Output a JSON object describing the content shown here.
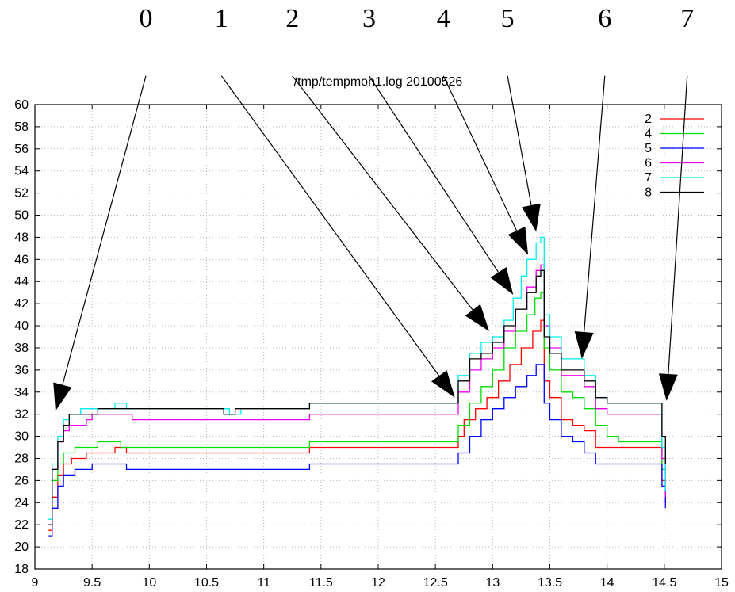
{
  "chart_data": {
    "type": "line",
    "title": "/tmp/tempmon1.log 20100526",
    "xlabel": "",
    "ylabel": "",
    "xlim": [
      9,
      15
    ],
    "ylim": [
      18,
      60
    ],
    "xticks": [
      "9",
      "9.5",
      "10",
      "10.5",
      "11",
      "11.5",
      "12",
      "12.5",
      "13",
      "13.5",
      "14",
      "14.5",
      "15"
    ],
    "yticks": [
      "18",
      "20",
      "22",
      "24",
      "26",
      "28",
      "30",
      "32",
      "34",
      "36",
      "38",
      "40",
      "42",
      "44",
      "46",
      "48",
      "50",
      "52",
      "54",
      "56",
      "58",
      "60"
    ],
    "grid": true,
    "legend": "top-right",
    "series": [
      {
        "name": "2",
        "color": "#ff0000",
        "points": [
          [
            9.12,
            21.5
          ],
          [
            9.15,
            24.5
          ],
          [
            9.2,
            26.5
          ],
          [
            9.25,
            27.5
          ],
          [
            9.32,
            28
          ],
          [
            9.45,
            28.5
          ],
          [
            9.7,
            29
          ],
          [
            9.8,
            28.5
          ],
          [
            11.35,
            28.5
          ],
          [
            11.4,
            29
          ],
          [
            12.65,
            29
          ],
          [
            12.7,
            30
          ],
          [
            12.75,
            31.5
          ],
          [
            12.85,
            32.5
          ],
          [
            12.95,
            33.5
          ],
          [
            13.05,
            35
          ],
          [
            13.15,
            36.5
          ],
          [
            13.25,
            38
          ],
          [
            13.35,
            39.5
          ],
          [
            13.42,
            40.5
          ],
          [
            13.45,
            35
          ],
          [
            13.5,
            33.5
          ],
          [
            13.6,
            31.5
          ],
          [
            13.7,
            31
          ],
          [
            13.8,
            30.5
          ],
          [
            13.9,
            29
          ],
          [
            14.0,
            29
          ],
          [
            14.45,
            29
          ],
          [
            14.48,
            26
          ],
          [
            14.51,
            24
          ]
        ]
      },
      {
        "name": "4",
        "color": "#00dd00",
        "points": [
          [
            9.12,
            22.5
          ],
          [
            9.15,
            26
          ],
          [
            9.2,
            27.5
          ],
          [
            9.25,
            28.5
          ],
          [
            9.35,
            29
          ],
          [
            9.55,
            29.5
          ],
          [
            9.7,
            29.5
          ],
          [
            9.75,
            29
          ],
          [
            11.35,
            29
          ],
          [
            11.4,
            29.5
          ],
          [
            12.65,
            29.5
          ],
          [
            12.7,
            31
          ],
          [
            12.8,
            33
          ],
          [
            12.9,
            34.5
          ],
          [
            13.0,
            36
          ],
          [
            13.1,
            38
          ],
          [
            13.2,
            39.5
          ],
          [
            13.3,
            41
          ],
          [
            13.37,
            42.5
          ],
          [
            13.42,
            43
          ],
          [
            13.45,
            38
          ],
          [
            13.5,
            36
          ],
          [
            13.6,
            34
          ],
          [
            13.7,
            33.5
          ],
          [
            13.8,
            32.5
          ],
          [
            13.9,
            31
          ],
          [
            14.0,
            30
          ],
          [
            14.1,
            29.5
          ],
          [
            14.45,
            29.5
          ],
          [
            14.48,
            27
          ],
          [
            14.51,
            25
          ]
        ]
      },
      {
        "name": "5",
        "color": "#0000ff",
        "points": [
          [
            9.12,
            21
          ],
          [
            9.15,
            23.5
          ],
          [
            9.2,
            25.5
          ],
          [
            9.25,
            26.5
          ],
          [
            9.35,
            27
          ],
          [
            9.5,
            27.5
          ],
          [
            9.75,
            27.5
          ],
          [
            9.8,
            27
          ],
          [
            11.35,
            27
          ],
          [
            11.4,
            27.5
          ],
          [
            12.65,
            27.5
          ],
          [
            12.7,
            28.5
          ],
          [
            12.8,
            30
          ],
          [
            12.9,
            31.5
          ],
          [
            13.0,
            32.5
          ],
          [
            13.1,
            33.5
          ],
          [
            13.2,
            34.5
          ],
          [
            13.3,
            35.5
          ],
          [
            13.38,
            36.5
          ],
          [
            13.42,
            36.5
          ],
          [
            13.45,
            33
          ],
          [
            13.5,
            31.5
          ],
          [
            13.6,
            30
          ],
          [
            13.7,
            29.5
          ],
          [
            13.8,
            28.5
          ],
          [
            13.9,
            27.5
          ],
          [
            14.45,
            27.5
          ],
          [
            14.48,
            25.5
          ],
          [
            14.51,
            23.5
          ]
        ]
      },
      {
        "name": "6",
        "color": "#ee00ee",
        "points": [
          [
            9.12,
            22
          ],
          [
            9.15,
            27
          ],
          [
            9.2,
            29.5
          ],
          [
            9.25,
            30.5
          ],
          [
            9.3,
            31
          ],
          [
            9.45,
            31.5
          ],
          [
            9.5,
            32
          ],
          [
            9.8,
            32
          ],
          [
            9.85,
            31.5
          ],
          [
            11.35,
            31.5
          ],
          [
            11.4,
            32
          ],
          [
            12.65,
            32
          ],
          [
            12.7,
            34
          ],
          [
            12.8,
            36
          ],
          [
            12.9,
            37
          ],
          [
            13.0,
            38
          ],
          [
            13.1,
            39.5
          ],
          [
            13.2,
            41.5
          ],
          [
            13.3,
            43.5
          ],
          [
            13.38,
            45
          ],
          [
            13.42,
            45.5
          ],
          [
            13.45,
            40
          ],
          [
            13.5,
            38
          ],
          [
            13.6,
            35.5
          ],
          [
            13.7,
            35.5
          ],
          [
            13.8,
            34.5
          ],
          [
            13.9,
            32.5
          ],
          [
            14.0,
            32
          ],
          [
            14.45,
            32
          ],
          [
            14.48,
            28
          ],
          [
            14.51,
            24.5
          ]
        ]
      },
      {
        "name": "7",
        "color": "#00eeee",
        "points": [
          [
            9.12,
            22.5
          ],
          [
            9.15,
            27.5
          ],
          [
            9.2,
            30
          ],
          [
            9.25,
            31.5
          ],
          [
            9.3,
            32
          ],
          [
            9.4,
            32.5
          ],
          [
            9.7,
            33
          ],
          [
            9.8,
            32.5
          ],
          [
            10.6,
            32.5
          ],
          [
            10.7,
            32
          ],
          [
            10.8,
            32.5
          ],
          [
            11.35,
            32.5
          ],
          [
            11.4,
            33
          ],
          [
            12.65,
            33
          ],
          [
            12.7,
            35.5
          ],
          [
            12.8,
            37.5
          ],
          [
            12.9,
            38.5
          ],
          [
            13.0,
            39
          ],
          [
            13.1,
            40.5
          ],
          [
            13.18,
            42.5
          ],
          [
            13.25,
            44.5
          ],
          [
            13.3,
            46
          ],
          [
            13.38,
            47.5
          ],
          [
            13.42,
            48
          ],
          [
            13.45,
            41
          ],
          [
            13.5,
            39
          ],
          [
            13.6,
            37
          ],
          [
            13.7,
            37
          ],
          [
            13.8,
            35.5
          ],
          [
            13.9,
            33.5
          ],
          [
            14.0,
            33
          ],
          [
            14.45,
            33
          ],
          [
            14.48,
            29
          ],
          [
            14.51,
            25
          ]
        ]
      },
      {
        "name": "8",
        "color": "#000000",
        "points": [
          [
            9.12,
            22
          ],
          [
            9.15,
            27
          ],
          [
            9.2,
            29.5
          ],
          [
            9.25,
            31
          ],
          [
            9.3,
            32
          ],
          [
            9.5,
            32
          ],
          [
            9.55,
            32.5
          ],
          [
            10.6,
            32.5
          ],
          [
            10.65,
            32
          ],
          [
            10.75,
            32.5
          ],
          [
            11.35,
            32.5
          ],
          [
            11.4,
            33
          ],
          [
            12.65,
            33
          ],
          [
            12.7,
            35
          ],
          [
            12.8,
            37
          ],
          [
            12.9,
            37.5
          ],
          [
            13.0,
            38.5
          ],
          [
            13.1,
            40
          ],
          [
            13.2,
            41.5
          ],
          [
            13.3,
            43
          ],
          [
            13.38,
            44.5
          ],
          [
            13.42,
            45
          ],
          [
            13.45,
            39
          ],
          [
            13.5,
            37.5
          ],
          [
            13.6,
            36
          ],
          [
            13.7,
            36
          ],
          [
            13.8,
            35
          ],
          [
            13.9,
            33.5
          ],
          [
            14.0,
            33
          ],
          [
            14.45,
            33
          ],
          [
            14.48,
            30
          ],
          [
            14.51,
            27.5
          ]
        ]
      }
    ],
    "annotations": [
      {
        "label": "0",
        "from": [
          9.97,
          62.6
        ],
        "to": [
          9.18,
          32.3
        ]
      },
      {
        "label": "1",
        "from": [
          10.63,
          62.6
        ],
        "to": [
          12.67,
          33.5
        ]
      },
      {
        "label": "2",
        "from": [
          11.25,
          62.6
        ],
        "to": [
          12.97,
          39.5
        ]
      },
      {
        "label": "3",
        "from": [
          11.92,
          62.6
        ],
        "to": [
          13.18,
          42.8
        ]
      },
      {
        "label": "4",
        "from": [
          12.57,
          62.6
        ],
        "to": [
          13.31,
          46.4
        ]
      },
      {
        "label": "5",
        "from": [
          13.13,
          62.6
        ],
        "to": [
          13.38,
          48.5
        ]
      },
      {
        "label": "6",
        "from": [
          13.98,
          62.6
        ],
        "to": [
          13.78,
          37.0
        ]
      },
      {
        "label": "7",
        "from": [
          14.7,
          62.6
        ],
        "to": [
          14.52,
          33.2
        ]
      }
    ]
  }
}
